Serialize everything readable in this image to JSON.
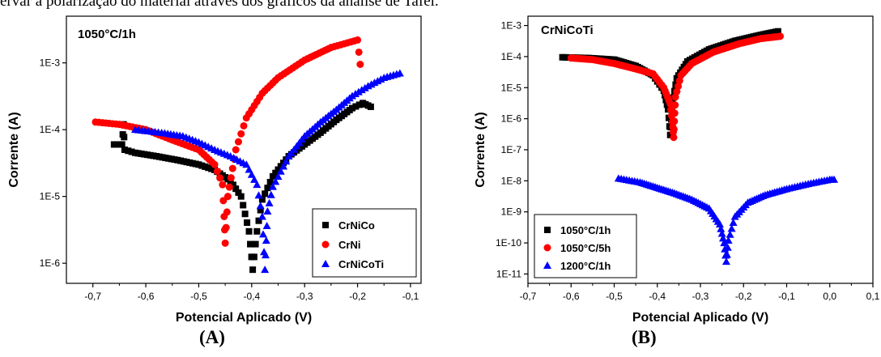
{
  "page_header_text": "ervar a polarização do material através dos gráficos da análise de Tafel.",
  "chart_data": [
    {
      "type": "scatter",
      "panel_caption": "(A)",
      "title": "1050°C/1h",
      "xlabel": "Potencial Aplicado (V)",
      "ylabel": "Corrente (A)",
      "xlim": [
        -0.75,
        -0.08
      ],
      "ylim": [
        5e-07,
        0.005
      ],
      "yscale": "log",
      "grid": false,
      "legend_position": "bottom-right",
      "x_ticks": [
        -0.7,
        -0.6,
        -0.5,
        -0.4,
        -0.3,
        -0.2,
        -0.1
      ],
      "x_tick_labels": [
        "-0,7",
        "-0,6",
        "-0,5",
        "-0,4",
        "-0,3",
        "-0,2",
        "-0,1"
      ],
      "y_ticks": [
        1e-06,
        1e-05,
        0.0001,
        0.001
      ],
      "y_tick_labels": [
        "1E-6",
        "1E-5",
        "1E-4",
        "1E-3"
      ],
      "series": [
        {
          "name": "CrNiCo",
          "color": "#000000",
          "marker": "square",
          "points": [
            [
              -0.66,
              6e-05
            ],
            [
              -0.645,
              6e-05
            ],
            [
              -0.642,
              0.00012
            ],
            [
              -0.64,
              5e-05
            ],
            [
              -0.62,
              4.5e-05
            ],
            [
              -0.58,
              4e-05
            ],
            [
              -0.54,
              3.5e-05
            ],
            [
              -0.5,
              3e-05
            ],
            [
              -0.47,
              2.5e-05
            ],
            [
              -0.44,
              1.7e-05
            ],
            [
              -0.42,
              1e-05
            ],
            [
              -0.405,
              3e-06
            ],
            [
              -0.398,
              8e-07
            ],
            [
              -0.39,
              3e-06
            ],
            [
              -0.38,
              9e-06
            ],
            [
              -0.36,
              2e-05
            ],
            [
              -0.33,
              4e-05
            ],
            [
              -0.3,
              6e-05
            ],
            [
              -0.27,
              9e-05
            ],
            [
              -0.24,
              0.00014
            ],
            [
              -0.21,
              0.00021
            ],
            [
              -0.19,
              0.00025
            ],
            [
              -0.175,
              0.00022
            ]
          ]
        },
        {
          "name": "CrNi",
          "color": "#ff0000",
          "marker": "circle",
          "points": [
            [
              -0.695,
              0.00013
            ],
            [
              -0.65,
              0.00012
            ],
            [
              -0.6,
              0.0001
            ],
            [
              -0.55,
              7e-05
            ],
            [
              -0.5,
              5e-05
            ],
            [
              -0.47,
              3e-05
            ],
            [
              -0.455,
              1.5e-05
            ],
            [
              -0.452,
              5e-06
            ],
            [
              -0.45,
              2e-06
            ],
            [
              -0.445,
              1e-05
            ],
            [
              -0.43,
              5e-05
            ],
            [
              -0.41,
              0.00015
            ],
            [
              -0.38,
              0.00035
            ],
            [
              -0.35,
              0.0006
            ],
            [
              -0.3,
              0.0011
            ],
            [
              -0.25,
              0.0017
            ],
            [
              -0.2,
              0.0022
            ],
            [
              -0.195,
              0.00095
            ]
          ]
        },
        {
          "name": "CrNiCoTi",
          "color": "#0000ff",
          "marker": "triangle",
          "points": [
            [
              -0.62,
              0.0001
            ],
            [
              -0.57,
              9e-05
            ],
            [
              -0.53,
              8e-05
            ],
            [
              -0.5,
              6.5e-05
            ],
            [
              -0.47,
              5e-05
            ],
            [
              -0.44,
              4e-05
            ],
            [
              -0.41,
              3e-05
            ],
            [
              -0.39,
              1.5e-05
            ],
            [
              -0.38,
              5e-06
            ],
            [
              -0.375,
              8e-07
            ],
            [
              -0.37,
              6e-06
            ],
            [
              -0.36,
              1.4e-05
            ],
            [
              -0.33,
              4e-05
            ],
            [
              -0.3,
              8e-05
            ],
            [
              -0.27,
              0.00013
            ],
            [
              -0.24,
              0.0002
            ],
            [
              -0.21,
              0.00032
            ],
            [
              -0.18,
              0.00045
            ],
            [
              -0.15,
              0.0006
            ],
            [
              -0.12,
              0.0007
            ]
          ]
        }
      ]
    },
    {
      "type": "scatter",
      "panel_caption": "(B)",
      "title": "CrNiCoTi",
      "xlabel": "Potencial Aplicado (V)",
      "ylabel": "Corrente (A)",
      "xlim": [
        -0.7,
        0.1
      ],
      "ylim": [
        5e-12,
        0.002
      ],
      "yscale": "log",
      "grid": false,
      "legend_position": "bottom-left",
      "x_ticks": [
        -0.7,
        -0.6,
        -0.5,
        -0.4,
        -0.3,
        -0.2,
        -0.1,
        0.0,
        0.1
      ],
      "x_tick_labels": [
        "-0,7",
        "-0,6",
        "-0,5",
        "-0,4",
        "-0,3",
        "-0,2",
        "-0,1",
        "0,0",
        "0,1"
      ],
      "y_ticks": [
        1e-11,
        1e-10,
        1e-09,
        1e-08,
        1e-07,
        1e-06,
        1e-05,
        0.0001,
        0.001
      ],
      "y_tick_labels": [
        "1E-11",
        "1E-10",
        "1E-9",
        "1E-8",
        "1E-7",
        "1E-6",
        "1E-5",
        "1E-4",
        "1E-3"
      ],
      "series": [
        {
          "name": "1050°C/1h",
          "color": "#000000",
          "marker": "square",
          "points": [
            [
              -0.62,
              9.5e-05
            ],
            [
              -0.56,
              9e-05
            ],
            [
              -0.5,
              8e-05
            ],
            [
              -0.45,
              5e-05
            ],
            [
              -0.41,
              2.5e-05
            ],
            [
              -0.385,
              8e-06
            ],
            [
              -0.375,
              2e-06
            ],
            [
              -0.37,
              3e-07
            ],
            [
              -0.365,
              3e-06
            ],
            [
              -0.355,
              2e-05
            ],
            [
              -0.33,
              7e-05
            ],
            [
              -0.28,
              0.00017
            ],
            [
              -0.22,
              0.00032
            ],
            [
              -0.16,
              0.0005
            ],
            [
              -0.12,
              0.00065
            ]
          ]
        },
        {
          "name": "1050°C/5h",
          "color": "#ff0000",
          "marker": "circle",
          "points": [
            [
              -0.6,
              9e-05
            ],
            [
              -0.55,
              8e-05
            ],
            [
              -0.5,
              6e-05
            ],
            [
              -0.45,
              4e-05
            ],
            [
              -0.41,
              2.8e-05
            ],
            [
              -0.385,
              1e-05
            ],
            [
              -0.37,
              3e-06
            ],
            [
              -0.365,
              8e-07
            ],
            [
              -0.362,
              2.5e-07
            ],
            [
              -0.358,
              5e-06
            ],
            [
              -0.345,
              2.5e-05
            ],
            [
              -0.32,
              6e-05
            ],
            [
              -0.27,
              0.00014
            ],
            [
              -0.21,
              0.00026
            ],
            [
              -0.16,
              0.00038
            ],
            [
              -0.115,
              0.00045
            ]
          ]
        },
        {
          "name": "1200°C/1h",
          "color": "#0000ff",
          "marker": "triangle",
          "points": [
            [
              -0.49,
              1.2e-08
            ],
            [
              -0.44,
              9e-09
            ],
            [
              -0.4,
              6e-09
            ],
            [
              -0.36,
              4e-09
            ],
            [
              -0.32,
              2.5e-09
            ],
            [
              -0.28,
              1.3e-09
            ],
            [
              -0.255,
              4e-10
            ],
            [
              -0.245,
              1e-10
            ],
            [
              -0.24,
              2.5e-11
            ],
            [
              -0.235,
              1.2e-10
            ],
            [
              -0.22,
              7e-10
            ],
            [
              -0.19,
              2e-09
            ],
            [
              -0.15,
              3.5e-09
            ],
            [
              -0.1,
              5.5e-09
            ],
            [
              -0.05,
              8e-09
            ],
            [
              0.0,
              1.1e-08
            ],
            [
              0.01,
              1.1e-08
            ]
          ]
        }
      ]
    }
  ]
}
